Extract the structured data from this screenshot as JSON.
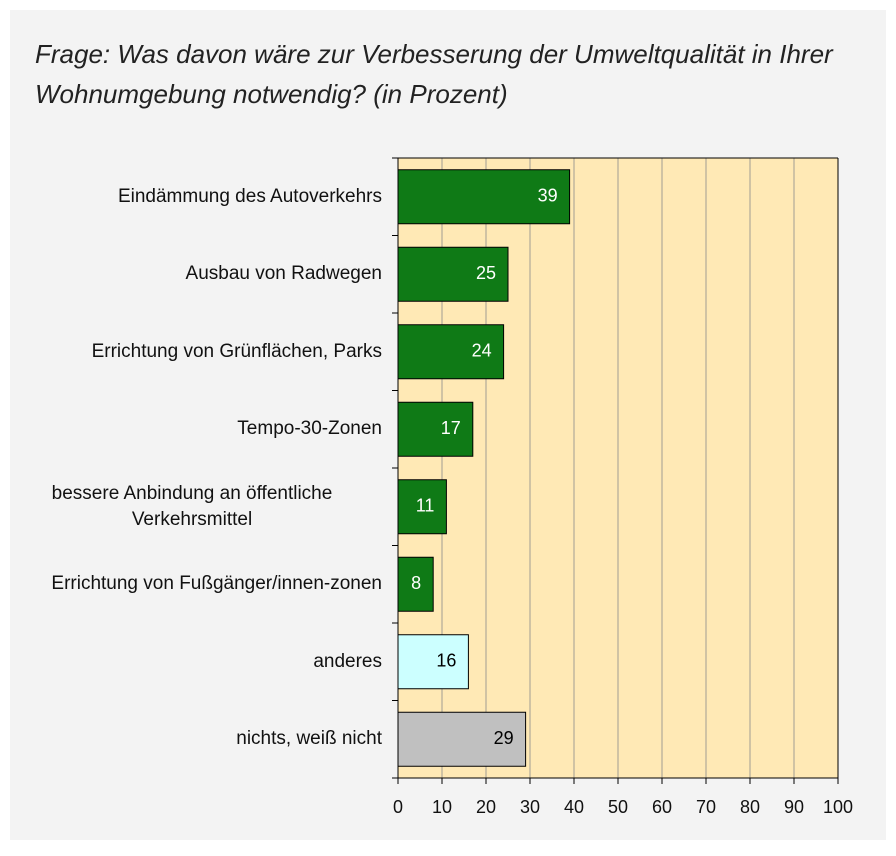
{
  "chart_data": {
    "type": "bar",
    "orientation": "horizontal",
    "title": "Frage: Was davon wäre zur Verbesserung der Umweltqualität in Ihrer Wohnumgebung notwendig? (in Prozent)",
    "categories": [
      "Eindämmung des Autoverkehrs",
      "Ausbau von Radwegen",
      "Errichtung von Grünflächen, Parks",
      "Tempo-30-Zonen",
      "bessere Anbindung an öffentliche Verkehrsmittel",
      "Errichtung von Fußgänger/innen-zonen",
      "anderes",
      "nichts, weiß nicht"
    ],
    "values": [
      39,
      25,
      24,
      17,
      11,
      8,
      16,
      29
    ],
    "colors": [
      "#0f7a16",
      "#0f7a16",
      "#0f7a16",
      "#0f7a16",
      "#0f7a16",
      "#0f7a16",
      "#ccffff",
      "#c0c0c0"
    ],
    "xlim": [
      0,
      100
    ],
    "xticks": [
      0,
      10,
      20,
      30,
      40,
      50,
      60,
      70,
      80,
      90,
      100
    ],
    "grid": true
  }
}
